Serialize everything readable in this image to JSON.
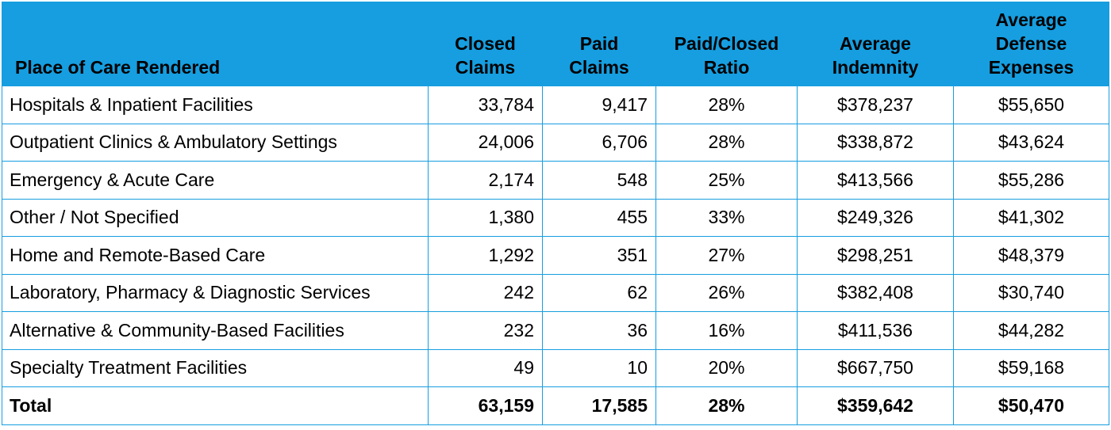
{
  "table": {
    "headers": {
      "place": "Place of Care Rendered",
      "closed_line1": "Closed",
      "closed_line2": "Claims",
      "paid_line1": "Paid",
      "paid_line2": "Claims",
      "ratio_line1": "Paid/Closed",
      "ratio_line2": "Ratio",
      "indemnity_line1": "Average",
      "indemnity_line2": "Indemnity",
      "defense_line1": "Average",
      "defense_line2": "Defense",
      "defense_line3": "Expenses"
    },
    "rows": [
      {
        "place": "Hospitals & Inpatient Facilities",
        "closed": "33,784",
        "paid": "9,417",
        "ratio": "28%",
        "indemnity": "$378,237",
        "defense": "$55,650"
      },
      {
        "place": "Outpatient Clinics & Ambulatory Settings",
        "closed": "24,006",
        "paid": "6,706",
        "ratio": "28%",
        "indemnity": "$338,872",
        "defense": "$43,624"
      },
      {
        "place": "Emergency & Acute Care",
        "closed": "2,174",
        "paid": "548",
        "ratio": "25%",
        "indemnity": "$413,566",
        "defense": "$55,286"
      },
      {
        "place": "Other / Not Specified",
        "closed": "1,380",
        "paid": "455",
        "ratio": "33%",
        "indemnity": "$249,326",
        "defense": "$41,302"
      },
      {
        "place": "Home and Remote-Based Care",
        "closed": "1,292",
        "paid": "351",
        "ratio": "27%",
        "indemnity": "$298,251",
        "defense": "$48,379"
      },
      {
        "place": "Laboratory, Pharmacy & Diagnostic Services",
        "closed": "242",
        "paid": "62",
        "ratio": "26%",
        "indemnity": "$382,408",
        "defense": "$30,740"
      },
      {
        "place": "Alternative & Community-Based Facilities",
        "closed": "232",
        "paid": "36",
        "ratio": "16%",
        "indemnity": "$411,536",
        "defense": "$44,282"
      },
      {
        "place": "Specialty Treatment Facilities",
        "closed": "49",
        "paid": "10",
        "ratio": "20%",
        "indemnity": "$667,750",
        "defense": "$59,168"
      }
    ],
    "total": {
      "place": "Total",
      "closed": "63,159",
      "paid": "17,585",
      "ratio": "28%",
      "indemnity": "$359,642",
      "defense": "$50,470"
    }
  },
  "colors": {
    "header_background": "#169ee0",
    "border": "#169ee0",
    "text": "#000000"
  }
}
